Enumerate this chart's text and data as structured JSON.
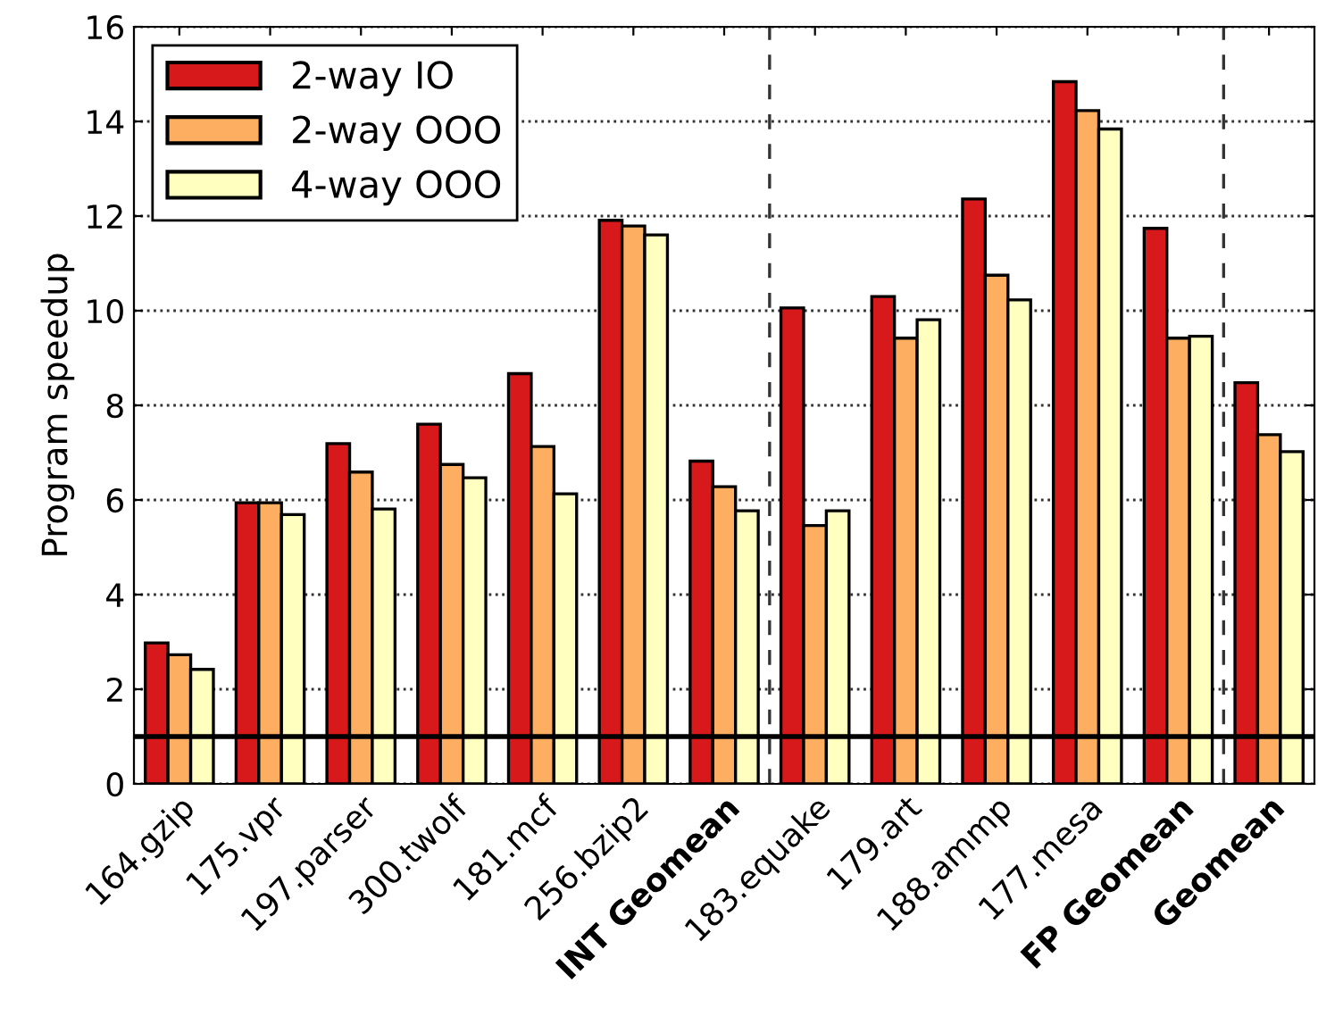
{
  "chart_data": {
    "type": "bar",
    "ylabel": "Program speedup",
    "categories": [
      "164.gzip",
      "175.vpr",
      "197.parser",
      "300.twolf",
      "181.mcf",
      "256.bzip2",
      "INT Geomean",
      "183.equake",
      "179.art",
      "188.ammp",
      "177.mesa",
      "FP Geomean",
      "Geomean"
    ],
    "series": [
      {
        "name": "2-way IO",
        "color": "#d7191c",
        "values": [
          2.98,
          5.94,
          7.19,
          7.6,
          8.67,
          11.91,
          6.82,
          10.06,
          10.3,
          12.36,
          14.84,
          11.74,
          8.48
        ]
      },
      {
        "name": "2-way OOO",
        "color": "#fdae61",
        "values": [
          2.73,
          5.94,
          6.59,
          6.75,
          7.13,
          11.79,
          6.28,
          5.46,
          9.42,
          10.75,
          14.23,
          9.42,
          7.38
        ]
      },
      {
        "name": "4-way OOO",
        "color": "#ffffbf",
        "values": [
          2.42,
          5.69,
          5.81,
          6.47,
          6.13,
          11.6,
          5.77,
          5.77,
          9.81,
          10.23,
          13.84,
          9.46,
          7.02
        ]
      }
    ],
    "ylim": [
      0,
      16
    ],
    "yticks": [
      0,
      2,
      4,
      6,
      8,
      10,
      12,
      14,
      16
    ],
    "ref_lines": [
      {
        "axis": "y",
        "value": 1,
        "color": "#000000",
        "line_style": "solid"
      }
    ],
    "grid": "y",
    "legend": "top left"
  }
}
